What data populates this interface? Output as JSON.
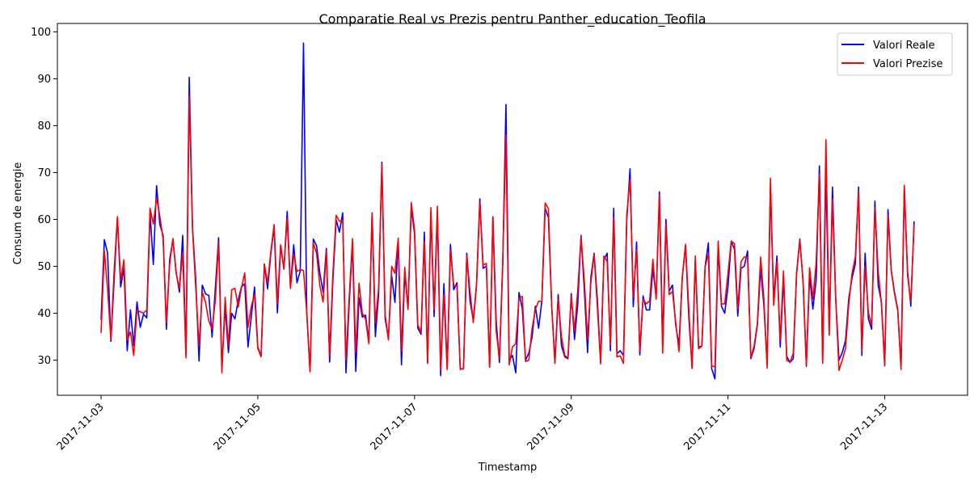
{
  "chart_data": {
    "type": "line",
    "title": "Comparatie Real vs Prezis pentru Panther_education_Teofila",
    "xlabel": "Timestamp",
    "ylabel": "Consum de energie",
    "x_range": [
      "2017-11-02T23:00",
      "2017-11-13T13:00"
    ],
    "x_start_tick": "2017-11-03",
    "x_step_hours": 1,
    "ylim": [
      22.5,
      101.8
    ],
    "yticks": [
      30,
      40,
      50,
      60,
      70,
      80,
      90,
      100
    ],
    "xtick_labels": [
      "2017-11-03",
      "2017-11-05",
      "2017-11-07",
      "2017-11-09",
      "2017-11-11",
      "2017-11-13"
    ],
    "grid": false,
    "legend_position": "top-right",
    "series": [
      {
        "name": "Valori Reale",
        "color": "#0000ff",
        "values": [
          38.6,
          55.7,
          52.8,
          34.0,
          47.0,
          60.4,
          45.6,
          49.6,
          32.0,
          40.7,
          33.1,
          42.4,
          37.0,
          39.8,
          39.0,
          61.4,
          50.4,
          67.2,
          58.9,
          56.6,
          36.6,
          51.4,
          55.7,
          48.7,
          44.5,
          56.6,
          31.2,
          90.3,
          58.4,
          47.1,
          29.8,
          46.0,
          44.1,
          43.8,
          34.9,
          45.4,
          56.1,
          28.5,
          41.2,
          31.6,
          40.0,
          38.8,
          42.8,
          45.6,
          46.3,
          32.8,
          39.2,
          45.6,
          32.8,
          30.8,
          50.5,
          45.2,
          52.8,
          58.4,
          40.1,
          54.3,
          49.4,
          61.7,
          45.5,
          54.6,
          46.5,
          49.0,
          97.6,
          40.0,
          27.6,
          55.8,
          54.4,
          48.6,
          44.5,
          53.8,
          29.6,
          47.0,
          59.9,
          57.3,
          61.4,
          27.3,
          42.2,
          54.8,
          27.6,
          43.3,
          39.2,
          39.6,
          34.0,
          61.4,
          35.0,
          44.0,
          72.2,
          38.8,
          34.7,
          48.0,
          42.3,
          55.5,
          29.0,
          48.4,
          41.2,
          62.4,
          57.0,
          36.8,
          35.5,
          57.3,
          29.5,
          61.4,
          39.3,
          61.7,
          26.7,
          46.3,
          28.2,
          54.7,
          45.0,
          46.5,
          28.2,
          28.1,
          52.8,
          42.6,
          38.5,
          46.3,
          64.4,
          49.6,
          50.0,
          28.5,
          60.6,
          38.5,
          29.5,
          50.0,
          84.5,
          30.0,
          31.0,
          27.3,
          44.4,
          41.0,
          30.0,
          31.5,
          34.9,
          41.5,
          36.8,
          42.6,
          62.4,
          60.4,
          41.8,
          29.5,
          44.0,
          33.1,
          30.7,
          30.3,
          44.2,
          34.4,
          42.0,
          56.6,
          44.9,
          31.6,
          47.6,
          52.8,
          42.8,
          29.5,
          51.4,
          52.8,
          32.0,
          62.4,
          31.4,
          32.0,
          31.0,
          59.8,
          70.8,
          41.4,
          55.2,
          31.1,
          43.7,
          40.7,
          40.7,
          49.5,
          43.5,
          65.9,
          33.6,
          60.0,
          44.7,
          46.0,
          37.4,
          33.2,
          47.6,
          54.4,
          39.2,
          28.5,
          51.3,
          32.8,
          33.0,
          50.0,
          55.0,
          28.2,
          26.0,
          54.0,
          41.5,
          40.0,
          45.6,
          55.3,
          53.6,
          39.4,
          49.6,
          50.0,
          53.3,
          30.3,
          32.5,
          37.5,
          49.6,
          41.6,
          29.0,
          66.6,
          42.7,
          52.2,
          32.8,
          47.3,
          30.8,
          29.5,
          30.3,
          48.5,
          55.8,
          46.6,
          28.7,
          48.1,
          40.9,
          47.0,
          71.4,
          30.0,
          70.0,
          36.0,
          66.9,
          43.0,
          30.0,
          31.6,
          34.2,
          43.2,
          47.5,
          50.5,
          66.9,
          31.0,
          52.8,
          38.8,
          36.6,
          63.9,
          46.0,
          42.3,
          28.8,
          62.1,
          49.2,
          44.5,
          40.8,
          28.5,
          66.6,
          49.0,
          41.5,
          59.6
        ]
      },
      {
        "name": "Valori Prezise",
        "color": "#ff0000",
        "values": [
          35.8,
          53.3,
          45.0,
          34.4,
          49.0,
          60.6,
          47.0,
          51.4,
          34.2,
          36.0,
          31.0,
          40.7,
          40.3,
          40.0,
          40.7,
          62.4,
          59.0,
          64.6,
          60.7,
          55.8,
          38.0,
          50.4,
          55.9,
          48.5,
          45.3,
          53.0,
          30.5,
          86.3,
          57.9,
          45.4,
          33.0,
          44.5,
          42.3,
          38.3,
          36.6,
          42.8,
          55.2,
          27.3,
          43.4,
          33.0,
          45.0,
          45.3,
          41.3,
          45.4,
          48.6,
          37.0,
          41.5,
          44.0,
          32.5,
          30.7,
          50.4,
          46.5,
          53.2,
          58.9,
          42.0,
          54.6,
          49.6,
          60.2,
          45.3,
          52.6,
          48.9,
          49.3,
          49.1,
          40.1,
          27.5,
          55.0,
          52.8,
          45.9,
          42.4,
          53.2,
          31.0,
          48.5,
          60.9,
          59.6,
          59.8,
          30.0,
          43.6,
          55.9,
          31.6,
          46.4,
          40.0,
          38.8,
          33.5,
          61.3,
          38.0,
          45.4,
          71.8,
          39.8,
          34.3,
          50.0,
          48.5,
          56.0,
          32.0,
          49.8,
          40.8,
          63.6,
          57.8,
          37.5,
          35.9,
          55.3,
          29.3,
          62.5,
          40.8,
          62.8,
          28.0,
          44.0,
          28.0,
          53.5,
          46.0,
          45.8,
          28.0,
          28.2,
          52.2,
          44.6,
          38.0,
          46.0,
          63.7,
          50.3,
          50.6,
          28.5,
          60.5,
          36.3,
          30.3,
          50.7,
          78.0,
          29.0,
          32.8,
          33.5,
          43.2,
          43.6,
          29.7,
          30.0,
          36.7,
          40.8,
          42.6,
          42.5,
          63.5,
          62.3,
          41.5,
          29.3,
          43.0,
          35.0,
          31.0,
          30.5,
          43.6,
          36.3,
          45.0,
          56.3,
          47.0,
          34.5,
          46.5,
          52.6,
          41.2,
          29.2,
          52.2,
          51.0,
          33.3,
          60.4,
          30.7,
          30.9,
          29.3,
          61.0,
          68.5,
          43.5,
          53.6,
          32.0,
          43.0,
          42.0,
          42.6,
          51.5,
          43.0,
          65.2,
          31.5,
          59.0,
          44.0,
          44.6,
          38.0,
          31.8,
          47.7,
          54.7,
          41.0,
          28.2,
          52.2,
          32.4,
          33.0,
          49.9,
          52.7,
          28.7,
          28.6,
          55.4,
          42.0,
          42.0,
          48.5,
          55.4,
          54.8,
          41.0,
          51.0,
          52.0,
          52.0,
          30.5,
          33.0,
          37.8,
          52.0,
          43.0,
          28.3,
          68.8,
          41.7,
          51.0,
          34.2,
          49.0,
          30.0,
          29.5,
          31.5,
          48.2,
          55.5,
          47.0,
          29.0,
          49.7,
          43.0,
          50.7,
          69.6,
          29.3,
          77.0,
          35.3,
          64.3,
          43.0,
          27.8,
          30.0,
          32.5,
          42.0,
          48.5,
          52.0,
          66.1,
          32.0,
          50.0,
          40.1,
          37.5,
          62.5,
          49.0,
          42.0,
          29.0,
          60.9,
          49.0,
          44.2,
          40.5,
          28.0,
          67.3,
          48.0,
          42.5,
          58.8
        ]
      }
    ]
  }
}
